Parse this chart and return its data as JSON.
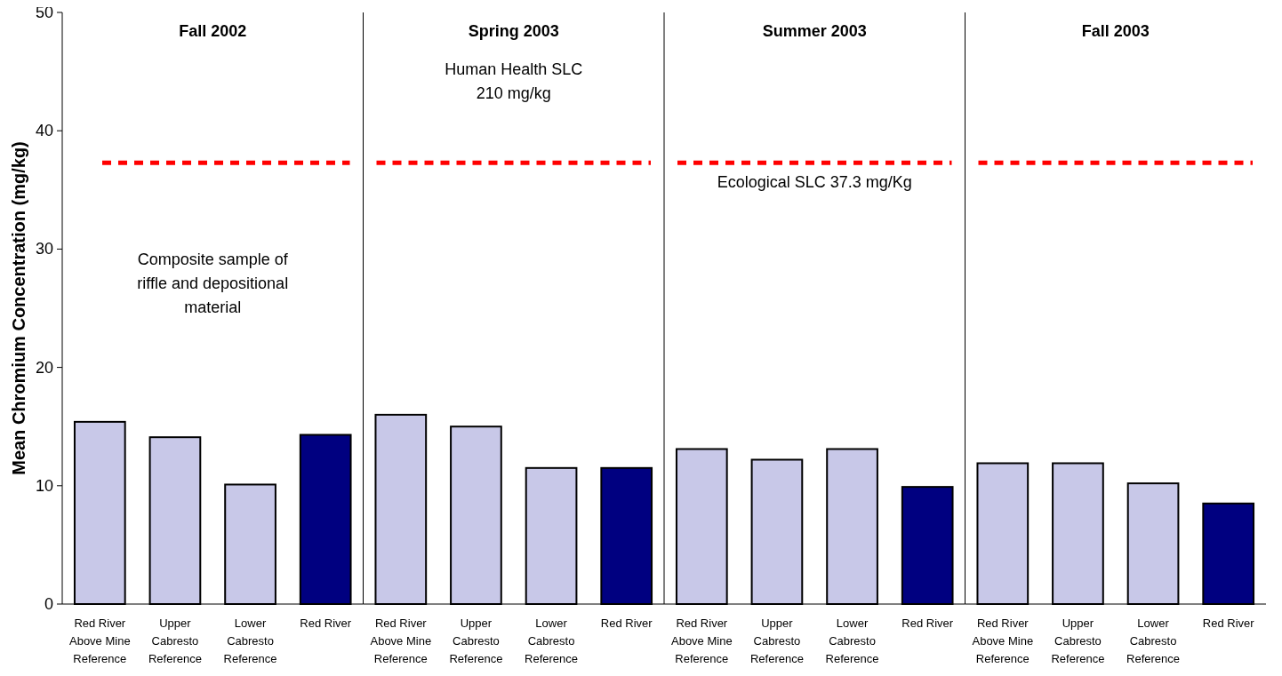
{
  "chart_data": [
    {
      "type": "bar",
      "title": "Fall 2002",
      "ylabel": "Mean Chromium Concentration (mg/kg)",
      "categories": [
        "Red River\nAbove Mine\nReference",
        "Upper\nCabresto\nReference",
        "Lower\nCabresto\nReference",
        "Red River"
      ],
      "values": [
        15.4,
        14.1,
        10.1,
        14.3
      ],
      "colors": [
        "#c8c8e8",
        "#c8c8e8",
        "#c8c8e8",
        "#000080"
      ],
      "ylim": [
        0,
        50
      ],
      "yticks": [
        0,
        10,
        20,
        30,
        40,
        50
      ],
      "ref_lines": [
        {
          "axis": "y",
          "value": 37.3,
          "label": null,
          "color": "#ff0000",
          "line_style": "dashed"
        }
      ],
      "annotations": [
        "Composite sample of\nriffle and depositional\nmaterial"
      ]
    },
    {
      "type": "bar",
      "title": "Spring 2003",
      "categories": [
        "Red River\nAbove Mine\nReference",
        "Upper\nCabresto\nReference",
        "Lower\nCabresto\nReference",
        "Red River"
      ],
      "values": [
        16.0,
        15.0,
        11.5,
        11.5
      ],
      "colors": [
        "#c8c8e8",
        "#c8c8e8",
        "#c8c8e8",
        "#000080"
      ],
      "ylim": [
        0,
        50
      ],
      "tick_labels": "x",
      "ref_lines": [
        {
          "axis": "y",
          "value": 37.3,
          "label": null,
          "color": "#ff0000",
          "line_style": "dashed"
        }
      ],
      "annotations": [
        "Human Health SLC\n210 mg/kg"
      ]
    },
    {
      "type": "bar",
      "title": "Summer 2003",
      "categories": [
        "Red River\nAbove Mine\nReference",
        "Upper\nCabresto\nReference",
        "Lower\nCabresto\nReference",
        "Red River"
      ],
      "values": [
        13.1,
        12.2,
        13.1,
        9.9
      ],
      "colors": [
        "#c8c8e8",
        "#c8c8e8",
        "#c8c8e8",
        "#000080"
      ],
      "ylim": [
        0,
        50
      ],
      "tick_labels": "x",
      "ref_lines": [
        {
          "axis": "y",
          "value": 37.3,
          "label": "Ecological SLC 37.3 mg/Kg",
          "color": "#ff0000",
          "line_style": "dashed"
        }
      ]
    },
    {
      "type": "bar",
      "title": "Fall 2003",
      "categories": [
        "Red River\nAbove Mine\nReference",
        "Upper\nCabresto\nReference",
        "Lower\nCabresto\nReference",
        "Red River"
      ],
      "values": [
        11.9,
        11.9,
        10.2,
        8.5
      ],
      "colors": [
        "#c8c8e8",
        "#c8c8e8",
        "#c8c8e8",
        "#000080"
      ],
      "ylim": [
        0,
        50
      ],
      "tick_labels": "x",
      "ref_lines": [
        {
          "axis": "y",
          "value": 37.3,
          "label": null,
          "color": "#ff0000",
          "line_style": "dashed"
        }
      ]
    }
  ]
}
